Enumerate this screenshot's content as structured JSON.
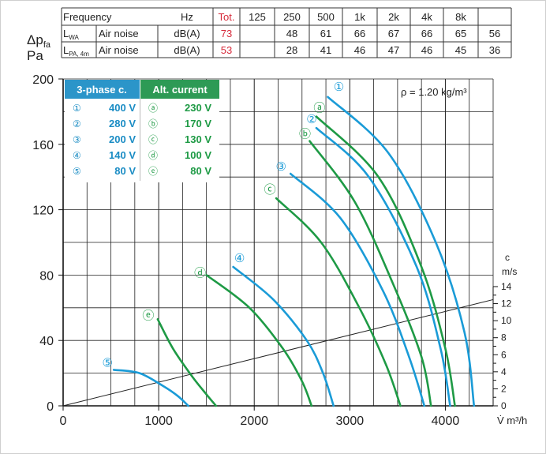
{
  "table": {
    "header": [
      "Frequency",
      "Hz",
      "Tot.",
      "125",
      "250",
      "500",
      "1k",
      "2k",
      "4k",
      "8k"
    ],
    "rows": [
      {
        "code": "L",
        "sub": "WA",
        "name": "Air noise",
        "unit": "dB(A)",
        "tot": "73",
        "values": [
          "48",
          "61",
          "66",
          "67",
          "66",
          "65",
          "56"
        ]
      },
      {
        "code": "L",
        "sub": "PA, 4m",
        "name": "Air noise",
        "unit": "dB(A)",
        "tot": "53",
        "values": [
          "28",
          "41",
          "46",
          "47",
          "46",
          "45",
          "36"
        ]
      }
    ]
  },
  "chart_data": {
    "type": "line",
    "ylabel_top": "Δp",
    "ylabel_sub": "fa",
    "ylabel_unit": "Pa",
    "xlabel": "V̇ m³/h",
    "xlim": [
      0,
      4500
    ],
    "ylim": [
      0,
      200
    ],
    "x_ticks": [
      "0",
      "1000",
      "2000",
      "3000",
      "4000"
    ],
    "y_ticks": [
      "0",
      "40",
      "80",
      "120",
      "160",
      "200"
    ],
    "grid": true,
    "density_note": "ρ = 1.20 kg/m³",
    "velocity_axis": {
      "label_top": "c",
      "label_unit": "m/s",
      "ticks": [
        "0",
        "2",
        "4",
        "6",
        "8",
        "10",
        "12",
        "14"
      ]
    },
    "velocity_line": [
      [
        0,
        0
      ],
      [
        4500,
        65
      ]
    ],
    "colors": {
      "three_phase": "#1a9bd7",
      "alt_current": "#1e9a45"
    },
    "legend": {
      "header_left": "3-phase c.",
      "header_right": "Alt. current",
      "left": [
        {
          "sym": "①",
          "label": "400 V"
        },
        {
          "sym": "②",
          "label": "280 V"
        },
        {
          "sym": "③",
          "label": "200 V"
        },
        {
          "sym": "④",
          "label": "140 V"
        },
        {
          "sym": "⑤",
          "label": "80 V"
        }
      ],
      "right": [
        {
          "sym": "ⓐ",
          "label": "230 V"
        },
        {
          "sym": "ⓑ",
          "label": "170 V"
        },
        {
          "sym": "ⓒ",
          "label": "130 V"
        },
        {
          "sym": "ⓓ",
          "label": "100 V"
        },
        {
          "sym": "ⓔ",
          "label": "80 V"
        }
      ]
    },
    "series": [
      {
        "name": "①",
        "group": "three_phase",
        "points": [
          [
            2770,
            189
          ],
          [
            3400,
            155
          ],
          [
            3900,
            100
          ],
          [
            4200,
            45
          ],
          [
            4300,
            0
          ]
        ]
      },
      {
        "name": "②",
        "group": "three_phase",
        "points": [
          [
            2650,
            170
          ],
          [
            3200,
            140
          ],
          [
            3700,
            85
          ],
          [
            3950,
            35
          ],
          [
            4050,
            0
          ]
        ]
      },
      {
        "name": "③",
        "group": "three_phase",
        "points": [
          [
            2380,
            142
          ],
          [
            2900,
            115
          ],
          [
            3350,
            70
          ],
          [
            3620,
            30
          ],
          [
            3780,
            0
          ]
        ]
      },
      {
        "name": "④",
        "group": "three_phase",
        "points": [
          [
            1780,
            85
          ],
          [
            2200,
            65
          ],
          [
            2550,
            40
          ],
          [
            2720,
            20
          ],
          [
            2830,
            0
          ]
        ]
      },
      {
        "name": "⑤",
        "group": "three_phase",
        "points": [
          [
            530,
            22
          ],
          [
            800,
            20
          ],
          [
            1050,
            12
          ],
          [
            1200,
            6
          ],
          [
            1310,
            0
          ]
        ]
      },
      {
        "name": "ⓐ",
        "group": "alt_current",
        "points": [
          [
            2650,
            177
          ],
          [
            3300,
            140
          ],
          [
            3750,
            85
          ],
          [
            4000,
            35
          ],
          [
            4100,
            0
          ]
        ]
      },
      {
        "name": "ⓑ",
        "group": "alt_current",
        "points": [
          [
            2580,
            162
          ],
          [
            3050,
            125
          ],
          [
            3450,
            75
          ],
          [
            3750,
            30
          ],
          [
            3850,
            0
          ]
        ]
      },
      {
        "name": "ⓒ",
        "group": "alt_current",
        "points": [
          [
            2230,
            127
          ],
          [
            2700,
            100
          ],
          [
            3100,
            60
          ],
          [
            3380,
            25
          ],
          [
            3530,
            0
          ]
        ]
      },
      {
        "name": "ⓓ",
        "group": "alt_current",
        "points": [
          [
            1500,
            80
          ],
          [
            1950,
            60
          ],
          [
            2300,
            35
          ],
          [
            2500,
            15
          ],
          [
            2600,
            0
          ]
        ]
      },
      {
        "name": "ⓔ",
        "group": "alt_current",
        "points": [
          [
            990,
            53
          ],
          [
            1150,
            35
          ],
          [
            1350,
            18
          ],
          [
            1500,
            7
          ],
          [
            1600,
            0
          ]
        ]
      }
    ]
  }
}
